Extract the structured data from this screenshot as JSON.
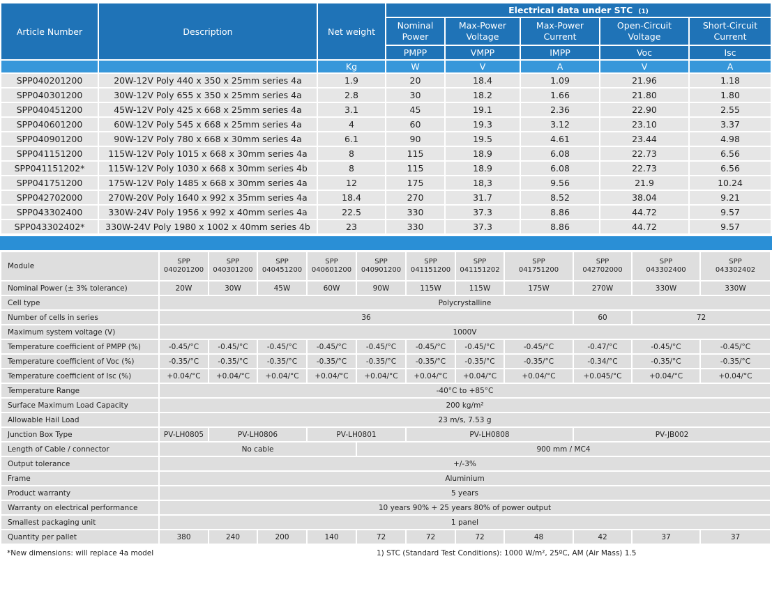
{
  "top": {
    "title": "Electrical data under STC",
    "title_ref": "(1)",
    "headers": {
      "article": "Article Number",
      "description": "Description",
      "net_weight": "Net weight",
      "weight_unit": "Kg"
    },
    "columns": [
      {
        "name": "Nominal Power",
        "symbol": "PMPP",
        "unit": "W"
      },
      {
        "name": "Max-Power Voltage",
        "symbol": "VMPP",
        "unit": "V"
      },
      {
        "name": "Max-Power Current",
        "symbol": "IMPP",
        "unit": "A"
      },
      {
        "name": "Open-Circuit Voltage",
        "symbol": "Voc",
        "unit": "V"
      },
      {
        "name": "Short-Circuit Current",
        "symbol": "Isc",
        "unit": "A"
      }
    ],
    "rows": [
      [
        "SPP040201200",
        "20W-12V Poly 440 x 350 x 25mm series 4a",
        "1.9",
        "20",
        "18.4",
        "1.09",
        "21.96",
        "1.18"
      ],
      [
        "SPP040301200",
        "30W-12V Poly 655 x 350 x 25mm series 4a",
        "2.8",
        "30",
        "18.2",
        "1.66",
        "21.80",
        "1.80"
      ],
      [
        "SPP040451200",
        "45W-12V Poly 425 x 668 x 25mm series 4a",
        "3.1",
        "45",
        "19.1",
        "2.36",
        "22.90",
        "2.55"
      ],
      [
        "SPP040601200",
        "60W-12V Poly 545 x 668 x 25mm series 4a",
        "4",
        "60",
        "19.3",
        "3.12",
        "23.10",
        "3.37"
      ],
      [
        "SPP040901200",
        "90W-12V Poly 780 x 668 x 30mm series 4a",
        "6.1",
        "90",
        "19.5",
        "4.61",
        "23.44",
        "4.98"
      ],
      [
        "SPP041151200",
        "115W-12V Poly 1015 x 668 x 30mm series 4a",
        "8",
        "115",
        "18.9",
        "6.08",
        "22.73",
        "6.56"
      ],
      [
        "SPP041151202*",
        "115W-12V Poly 1030 x 668 x 30mm series 4b",
        "8",
        "115",
        "18.9",
        "6.08",
        "22.73",
        "6.56"
      ],
      [
        "SPP041751200",
        "175W-12V Poly 1485 x 668 x 30mm series 4a",
        "12",
        "175",
        "18,3",
        "9.56",
        "21.9",
        "10.24"
      ],
      [
        "SPP042702000",
        "270W-20V Poly 1640 x 992 x 35mm series 4a",
        "18.4",
        "270",
        "31.7",
        "8.52",
        "38.04",
        "9.21"
      ],
      [
        "SPP043302400",
        "330W-24V Poly 1956 x 992 x 40mm series 4a",
        "22.5",
        "330",
        "37.3",
        "8.86",
        "44.72",
        "9.57"
      ],
      [
        "SPP043302402*",
        "330W-24V Poly 1980 x 1002 x 40mm series 4b",
        "23",
        "330",
        "37.3",
        "8.86",
        "44.72",
        "9.57"
      ]
    ]
  },
  "spec": {
    "module_label": "Module",
    "modules": [
      [
        "SPP",
        "040201200"
      ],
      [
        "SPP",
        "040301200"
      ],
      [
        "SPP",
        "040451200"
      ],
      [
        "SPP",
        "040601200"
      ],
      [
        "SPP",
        "040901200"
      ],
      [
        "SPP",
        "041151200"
      ],
      [
        "SPP",
        "041151202"
      ],
      [
        "SPP",
        "041751200"
      ],
      [
        "SPP",
        "042702000"
      ],
      [
        "SPP",
        "043302400"
      ],
      [
        "SPP",
        "043302402"
      ]
    ],
    "rows": [
      {
        "label": "Nominal Power   (± 3% tolerance)",
        "cells": [
          "20W",
          "30W",
          "45W",
          "60W",
          "90W",
          "115W",
          "115W",
          "175W",
          "270W",
          "330W",
          "330W"
        ]
      },
      {
        "label": "Cell type",
        "cells": [
          "Polycrystalline"
        ]
      },
      {
        "label": "Number of cells in series",
        "cells": [
          "36",
          "60",
          "72"
        ]
      },
      {
        "label": "Maximum system voltage (V)",
        "cells": [
          "1000V"
        ]
      },
      {
        "label": "Temperature coefficient of PMPP (%)",
        "cells": [
          "-0.45/°C",
          "-0.45/°C",
          "-0.45/°C",
          "-0.45/°C",
          "-0.45/°C",
          "-0.45/°C",
          "-0.45/°C",
          "-0.45/°C",
          "-0.47/°C",
          "-0.45/°C",
          "-0.45/°C"
        ]
      },
      {
        "label": "Temperature coefficient of Voc (%)",
        "cells": [
          "-0.35/°C",
          "-0.35/°C",
          "-0.35/°C",
          "-0.35/°C",
          "-0.35/°C",
          "-0.35/°C",
          "-0.35/°C",
          "-0.35/°C",
          "-0.34/°C",
          "-0.35/°C",
          "-0.35/°C"
        ]
      },
      {
        "label": "Temperature coefficient of Isc (%)",
        "cells": [
          "+0.04/°C",
          "+0.04/°C",
          "+0.04/°C",
          "+0.04/°C",
          "+0.04/°C",
          "+0.04/°C",
          "+0.04/°C",
          "+0.04/°C",
          "+0.045/°C",
          "+0.04/°C",
          "+0.04/°C"
        ]
      },
      {
        "label": "Temperature Range",
        "cells": [
          "-40°C to +85°C"
        ]
      },
      {
        "label": "Surface Maximum Load Capacity",
        "cells": [
          "200 kg/m²"
        ]
      },
      {
        "label": "Allowable Hail Load",
        "cells": [
          "23 m/s, 7.53 g"
        ]
      },
      {
        "label": "Junction Box Type",
        "cells": [
          "PV-LH0805",
          "PV-LH0806",
          "PV-LH0801",
          "PV-LH0808",
          "PV-JB002"
        ]
      },
      {
        "label": "Length of Cable / connector",
        "cells": [
          "No cable",
          "900 mm / MC4"
        ]
      },
      {
        "label": "Output tolerance",
        "cells": [
          "+/-3%"
        ]
      },
      {
        "label": "Frame",
        "cells": [
          "Aluminium"
        ]
      },
      {
        "label": "Product warranty",
        "cells": [
          "5 years"
        ]
      },
      {
        "label": "Warranty on electrical performance",
        "cells": [
          "10 years 90% + 25 years 80% of power output"
        ]
      },
      {
        "label": "Smallest packaging unit",
        "cells": [
          "1 panel"
        ]
      },
      {
        "label": "Quantity per pallet",
        "cells": [
          "380",
          "240",
          "200",
          "140",
          "72",
          "72",
          "72",
          "48",
          "42",
          "37",
          "37"
        ]
      }
    ]
  },
  "footnotes": {
    "new_dimensions": "*New dimensions: will replace 4a model",
    "stc": "1) STC (Standard Test Conditions): 1000 W/m², 25ºC, AM (Air Mass) 1.5"
  }
}
